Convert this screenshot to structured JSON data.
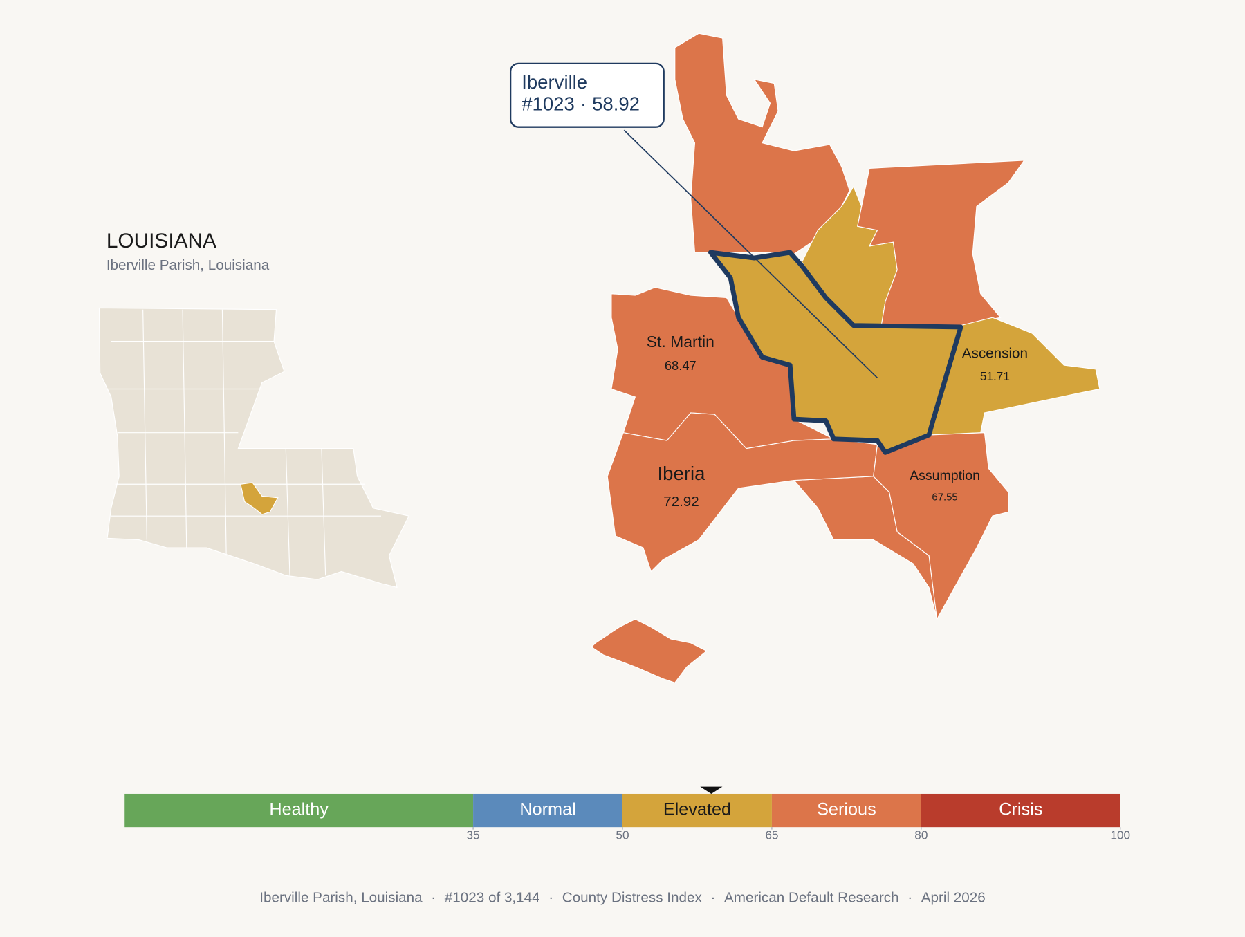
{
  "header": {
    "title": "LOUISIANA",
    "subtitle": "Iberville Parish, Louisiana"
  },
  "callout": {
    "name": "Iberville",
    "rank": "#1023",
    "separator": "·",
    "score": 58.92
  },
  "parishes": [
    {
      "name": "St. Martin",
      "score": 68.47
    },
    {
      "name": "Ascension",
      "score": 51.71
    },
    {
      "name": "Iberia",
      "score": 72.92
    },
    {
      "name": "Assumption",
      "score": 67.55
    }
  ],
  "scale": {
    "range": [
      0,
      100
    ],
    "ticks": [
      35,
      50,
      65,
      80,
      100
    ],
    "bands": [
      {
        "label": "Healthy",
        "color": "#67a659"
      },
      {
        "label": "Normal",
        "color": "#5b8abb"
      },
      {
        "label": "Elevated",
        "color": "#d4a43b"
      },
      {
        "label": "Serious",
        "color": "#dc754a"
      },
      {
        "label": "Crisis",
        "color": "#b93c2c"
      }
    ]
  },
  "footer": {
    "items": [
      "Iberville Parish, Louisiana",
      "#1023 of 3,144",
      "County Distress Index",
      "American Default Research",
      "April 2026"
    ],
    "separator": "·"
  }
}
